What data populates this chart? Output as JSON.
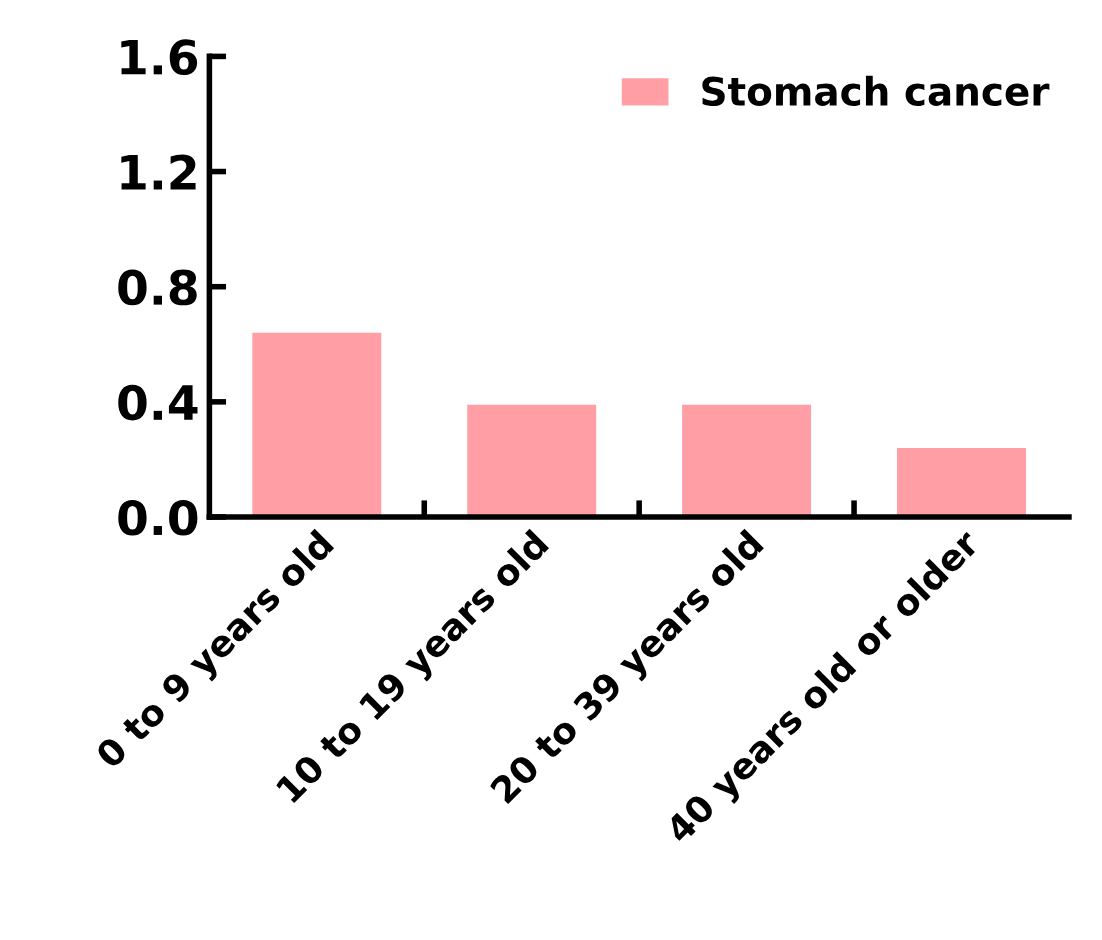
{
  "chart_data": {
    "type": "bar",
    "categories": [
      "0 to 9 years old",
      "10 to 19 years old",
      "20 to 39 years old",
      "40 years old or older"
    ],
    "series": [
      {
        "name": "Stomach cancer",
        "color": "#ff9fa5",
        "values": [
          0.64,
          0.39,
          0.39,
          0.24
        ]
      }
    ],
    "ylim": [
      0,
      1.6
    ],
    "yticks": [
      {
        "value": 0,
        "label": "0.0"
      },
      0.4,
      0.8,
      1.2,
      1.6
    ],
    "grid": false,
    "legend": "top right"
  }
}
